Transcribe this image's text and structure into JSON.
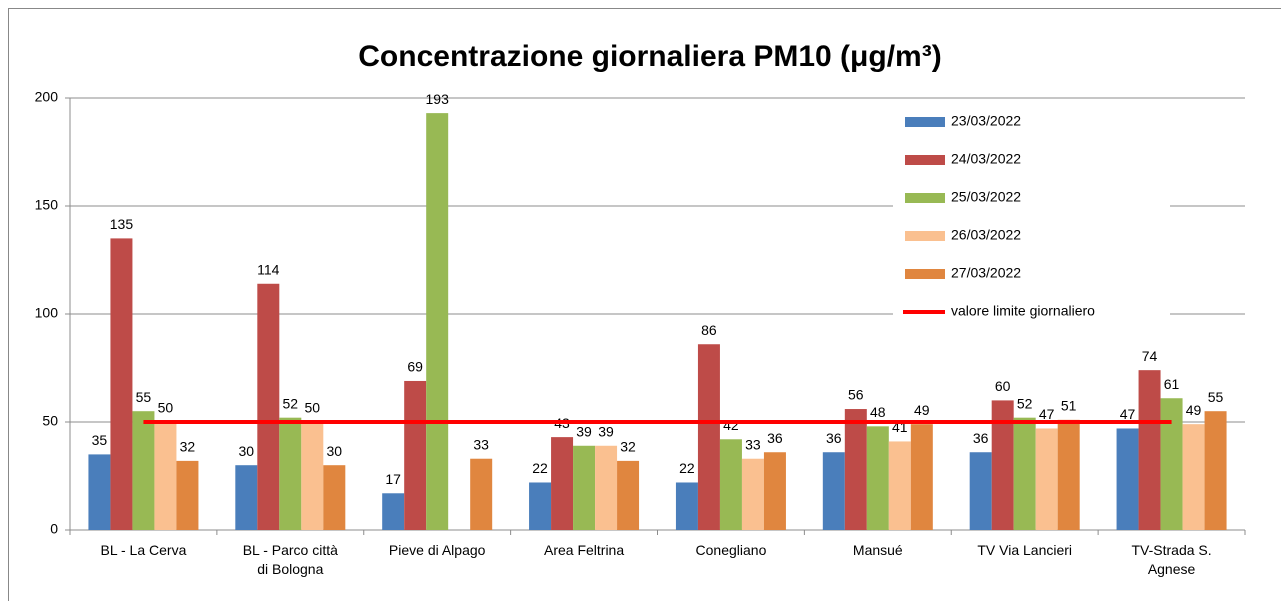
{
  "chart_data": {
    "type": "bar",
    "title": "Concentrazione giornaliera PM10 (μg/m³)",
    "categories": [
      "BL - La Cerva",
      "BL - Parco città di Bologna",
      "Pieve di Alpago",
      "Area Feltrina",
      "Conegliano",
      "Mansué",
      "TV Via Lancieri",
      "TV-Strada S. Agnese"
    ],
    "series": [
      {
        "name": "23/03/2022",
        "color": "#4a7ebb",
        "values": [
          35,
          30,
          17,
          22,
          22,
          36,
          36,
          47
        ]
      },
      {
        "name": "24/03/2022",
        "color": "#be4b48",
        "values": [
          135,
          114,
          69,
          43,
          86,
          56,
          60,
          74
        ]
      },
      {
        "name": "25/03/2022",
        "color": "#98b954",
        "values": [
          55,
          52,
          193,
          39,
          42,
          48,
          52,
          61
        ]
      },
      {
        "name": "26/03/2022",
        "color": "#fac090",
        "values": [
          50,
          50,
          null,
          39,
          33,
          41,
          47,
          49
        ]
      },
      {
        "name": "27/03/2022",
        "color": "#e0863f",
        "values": [
          32,
          30,
          33,
          32,
          36,
          49,
          51,
          55
        ]
      },
      {
        "name": "valore limite giornaliero",
        "type": "line",
        "color": "#ff0000",
        "values": [
          50,
          50,
          50,
          50,
          50,
          50,
          50,
          50
        ]
      }
    ],
    "ylim": [
      0,
      200
    ],
    "yticks": [
      0,
      50,
      100,
      150,
      200
    ],
    "grid": true,
    "legend": "top-right"
  }
}
